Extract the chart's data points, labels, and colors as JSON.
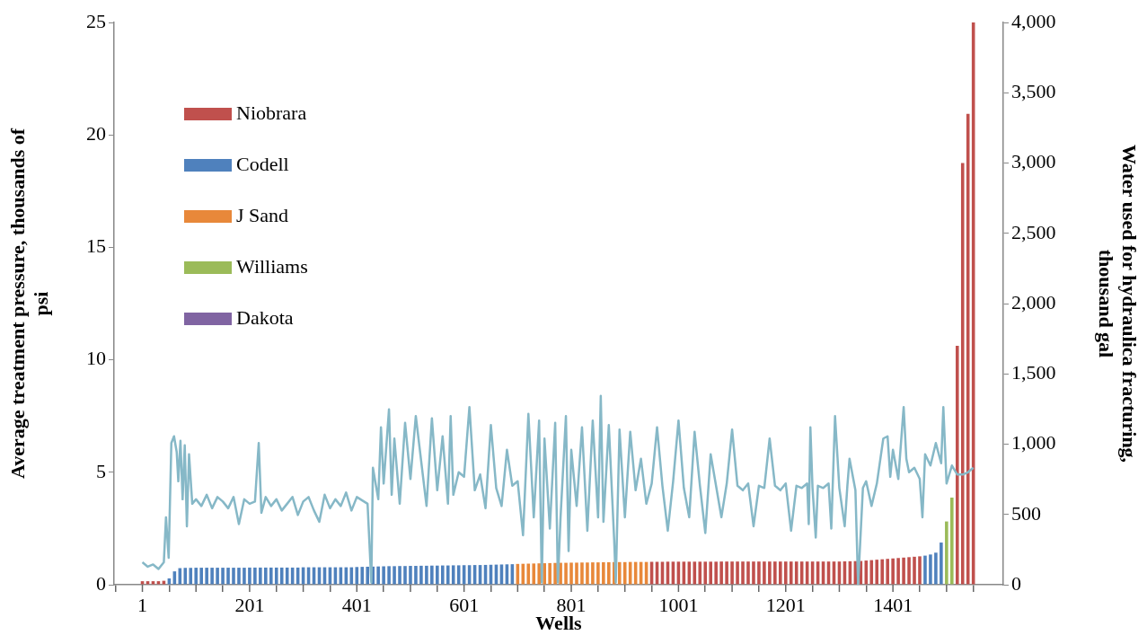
{
  "chart_data": {
    "type": "bar",
    "xlabel": "Wells",
    "ylabel": "Average treatment pressure, thousands of psi",
    "y2label": "Water used for hydraulica fracturing, thousand gal",
    "xlim": [
      0,
      1555
    ],
    "xticks": [
      1,
      {
        "value": 101,
        "label": null
      },
      201,
      {
        "value": 301,
        "label": null
      },
      401,
      {
        "value": 501,
        "label": null
      },
      601,
      {
        "value": 701,
        "label": null
      },
      801,
      {
        "value": 901,
        "label": null
      },
      1001,
      {
        "value": 1101,
        "label": null
      },
      1201,
      {
        "value": 1301,
        "label": null
      },
      1401,
      {
        "value": 1501,
        "label": null
      }
    ],
    "ylim": [
      0,
      25
    ],
    "yticks": [
      0,
      5,
      10,
      15,
      20,
      25
    ],
    "y2lim": [
      0,
      4000
    ],
    "y2ticks": [
      0,
      500,
      {
        "value": 1000,
        "label": "1,000"
      },
      {
        "value": 1500,
        "label": "1,500"
      },
      {
        "value": 2000,
        "label": "2,000"
      },
      {
        "value": 2500,
        "label": "2,500"
      },
      {
        "value": 3000,
        "label": "3,000"
      },
      {
        "value": 3500,
        "label": "3,500"
      },
      {
        "value": 4000,
        "label": "4,000"
      }
    ],
    "grid": false,
    "legend": "top left",
    "series": [
      {
        "name": "Niobrara",
        "color": "#c0504d",
        "axis": "y2",
        "x": [
          1,
          11,
          21,
          31,
          41,
          951,
          961,
          971,
          981,
          991,
          1001,
          1011,
          1021,
          1031,
          1041,
          1051,
          1061,
          1071,
          1081,
          1091,
          1101,
          1111,
          1121,
          1131,
          1141,
          1151,
          1161,
          1171,
          1181,
          1191,
          1201,
          1211,
          1221,
          1231,
          1241,
          1251,
          1261,
          1271,
          1281,
          1291,
          1301,
          1311,
          1321,
          1331,
          1341,
          1351,
          1361,
          1371,
          1381,
          1391,
          1401,
          1411,
          1421,
          1431,
          1441,
          1451,
          1521,
          1531,
          1541,
          1551
        ],
        "values": [
          25,
          25,
          25,
          25,
          28,
          163,
          163,
          163,
          164,
          164,
          164,
          164,
          164,
          164,
          164,
          164,
          164,
          164,
          165,
          165,
          165,
          165,
          165,
          165,
          165,
          165,
          165,
          165,
          165,
          165,
          165,
          165,
          165,
          165,
          165,
          165,
          165,
          165,
          165,
          165,
          165,
          166,
          167,
          168,
          169,
          172,
          175,
          178,
          181,
          184,
          187,
          190,
          193,
          196,
          199,
          202,
          1700,
          3000,
          3350,
          4000
        ]
      },
      {
        "name": "Codell",
        "color": "#4f81bd",
        "axis": "y2",
        "x": [
          51,
          61,
          71,
          81,
          91,
          101,
          111,
          121,
          131,
          141,
          151,
          161,
          171,
          181,
          191,
          201,
          211,
          221,
          231,
          241,
          251,
          261,
          271,
          281,
          291,
          301,
          311,
          321,
          331,
          341,
          351,
          361,
          371,
          381,
          391,
          401,
          411,
          421,
          431,
          441,
          451,
          461,
          471,
          481,
          491,
          501,
          511,
          521,
          531,
          541,
          551,
          561,
          571,
          581,
          591,
          601,
          611,
          621,
          631,
          641,
          651,
          661,
          671,
          681,
          691,
          1461,
          1471,
          1481,
          1491
        ],
        "values": [
          45,
          95,
          118,
          120,
          120,
          121,
          121,
          121,
          121,
          121,
          121,
          121,
          121,
          121,
          121,
          122,
          122,
          122,
          122,
          122,
          122,
          122,
          122,
          122,
          122,
          124,
          124,
          124,
          124,
          124,
          124,
          124,
          124,
          124,
          124,
          126,
          127,
          128,
          129,
          130,
          131,
          132,
          132,
          133,
          133,
          134,
          134,
          135,
          135,
          136,
          136,
          137,
          137,
          138,
          138,
          139,
          139,
          140,
          140,
          141,
          142,
          143,
          144,
          145,
          146,
          207,
          215,
          228,
          300
        ]
      },
      {
        "name": "J Sand",
        "color": "#e8883a",
        "axis": "y2",
        "x": [
          701,
          711,
          721,
          731,
          741,
          751,
          761,
          771,
          781,
          791,
          801,
          811,
          821,
          831,
          841,
          851,
          861,
          871,
          881,
          891,
          901,
          911,
          921,
          931,
          941
        ],
        "values": [
          148,
          149,
          150,
          151,
          152,
          153,
          154,
          155,
          156,
          156,
          157,
          157,
          158,
          158,
          159,
          159,
          160,
          160,
          161,
          161,
          161,
          162,
          162,
          162,
          162
        ]
      },
      {
        "name": "Williams",
        "color": "#9bbb59",
        "axis": "y2",
        "x": [
          1501,
          1511
        ],
        "values": [
          450,
          620
        ]
      },
      {
        "name": "Dakota",
        "color": "#8064a2",
        "axis": "y2"
      },
      {
        "type": "line",
        "color": "#86b8c7",
        "axis": "y",
        "x": [
          1,
          11,
          21,
          31,
          41,
          45,
          50,
          55,
          60,
          65,
          68,
          72,
          76,
          80,
          84,
          88,
          94,
          101,
          111,
          121,
          131,
          141,
          151,
          161,
          171,
          181,
          191,
          201,
          211,
          218,
          223,
          231,
          241,
          251,
          261,
          271,
          281,
          291,
          301,
          311,
          321,
          331,
          341,
          351,
          361,
          371,
          381,
          391,
          401,
          421,
          428,
          431,
          441,
          446,
          451,
          461,
          466,
          471,
          481,
          491,
          501,
          511,
          521,
          531,
          541,
          551,
          561,
          571,
          576,
          581,
          591,
          601,
          611,
          621,
          631,
          641,
          651,
          661,
          671,
          681,
          691,
          701,
          711,
          721,
          731,
          741,
          746,
          751,
          761,
          771,
          776,
          781,
          791,
          796,
          801,
          811,
          821,
          831,
          841,
          851,
          856,
          861,
          871,
          881,
          884,
          891,
          901,
          911,
          921,
          931,
          941,
          951,
          961,
          971,
          981,
          991,
          1001,
          1011,
          1021,
          1031,
          1041,
          1051,
          1061,
          1071,
          1081,
          1091,
          1101,
          1111,
          1121,
          1131,
          1141,
          1151,
          1161,
          1171,
          1181,
          1191,
          1201,
          1211,
          1221,
          1231,
          1241,
          1244,
          1247,
          1251,
          1257,
          1261,
          1271,
          1281,
          1286,
          1293,
          1301,
          1311,
          1316,
          1320,
          1331,
          1336,
          1345,
          1351,
          1361,
          1371,
          1383,
          1391,
          1396,
          1401,
          1411,
          1421,
          1426,
          1431,
          1441,
          1451,
          1456,
          1461,
          1471,
          1481,
          1491,
          1495,
          1501,
          1511,
          1521,
          1531,
          1541,
          1551
        ],
        "values": [
          1.0,
          0.8,
          0.9,
          0.7,
          1.0,
          3.0,
          1.2,
          6.3,
          6.6,
          5.9,
          4.6,
          6.4,
          3.8,
          6.2,
          2.6,
          5.8,
          3.6,
          3.8,
          3.5,
          4.0,
          3.4,
          3.9,
          3.7,
          3.4,
          3.9,
          2.7,
          3.8,
          3.6,
          3.7,
          6.3,
          3.2,
          3.9,
          3.5,
          3.8,
          3.3,
          3.6,
          3.9,
          3.1,
          3.7,
          3.9,
          3.3,
          2.8,
          4.0,
          3.4,
          3.8,
          3.5,
          4.1,
          3.3,
          3.9,
          3.6,
          0.1,
          5.2,
          3.8,
          7.0,
          4.5,
          7.8,
          4.0,
          6.5,
          3.6,
          7.2,
          4.7,
          7.5,
          5.5,
          3.5,
          7.4,
          4.2,
          6.6,
          3.6,
          7.5,
          4.0,
          5.0,
          4.8,
          7.9,
          4.2,
          4.9,
          3.4,
          7.1,
          4.3,
          3.5,
          6.0,
          4.4,
          4.6,
          2.2,
          7.6,
          3.0,
          7.3,
          0.1,
          6.5,
          2.5,
          7.2,
          0.1,
          3.0,
          7.5,
          1.5,
          6.0,
          3.5,
          7.0,
          2.4,
          7.3,
          3.0,
          8.4,
          2.8,
          7.1,
          2.0,
          0.1,
          6.9,
          3.0,
          6.8,
          4.2,
          5.6,
          3.6,
          4.5,
          7.0,
          4.4,
          2.4,
          4.6,
          7.3,
          4.3,
          3.0,
          6.8,
          4.4,
          2.3,
          5.8,
          4.4,
          3.0,
          4.5,
          6.9,
          4.4,
          4.2,
          4.5,
          2.6,
          4.4,
          4.3,
          6.5,
          4.4,
          4.2,
          4.5,
          2.4,
          4.4,
          4.3,
          4.5,
          2.7,
          7.0,
          4.3,
          2.1,
          4.4,
          4.3,
          4.5,
          2.5,
          7.5,
          4.3,
          2.6,
          4.4,
          5.6,
          4.2,
          0.0,
          4.3,
          4.6,
          3.5,
          4.5,
          6.5,
          6.6,
          4.8,
          6.0,
          4.7,
          7.9,
          5.6,
          5.0,
          5.2,
          4.7,
          3.0,
          5.8,
          5.3,
          6.3,
          5.4,
          7.9,
          4.5,
          5.3,
          4.9,
          4.9,
          5.0,
          5.2
        ]
      }
    ]
  }
}
